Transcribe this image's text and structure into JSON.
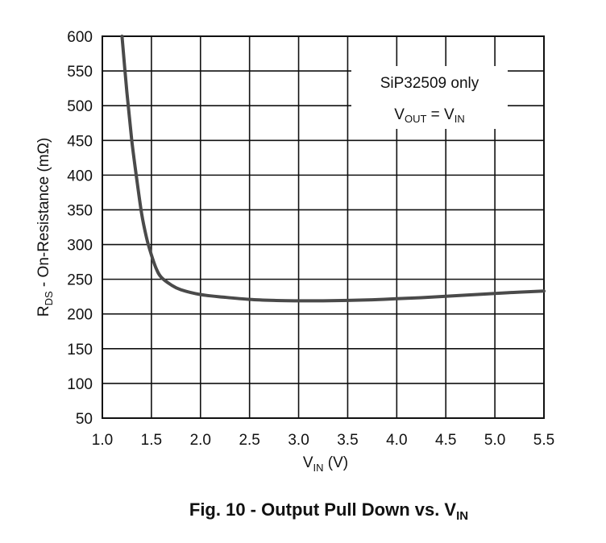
{
  "chart_data": {
    "type": "line",
    "caption": {
      "main": "Fig. 10 - Output Pull Down vs. V",
      "sub": "IN"
    },
    "xlabel": {
      "main": "V",
      "sub": "IN",
      "rest": " (V)"
    },
    "ylabel": {
      "pre": "R",
      "sub": "DS",
      "rest": " - On-Resistance (mΩ)"
    },
    "annotation": {
      "line1": "SiP32509 only",
      "line2": {
        "a": "V",
        "a_sub": "OUT",
        "eq": " = V",
        "b_sub": "IN"
      }
    },
    "xlim": [
      1.0,
      5.5
    ],
    "ylim": [
      50,
      600
    ],
    "xticks": [
      "1.0",
      "1.5",
      "2.0",
      "2.5",
      "3.0",
      "3.5",
      "4.0",
      "4.5",
      "5.0",
      "5.5"
    ],
    "yticks": [
      "600",
      "550",
      "500",
      "450",
      "400",
      "350",
      "300",
      "250",
      "200",
      "150",
      "100",
      "50"
    ],
    "grid": true,
    "series": [
      {
        "color": "#4a4a4a",
        "x": [
          1.2,
          1.25,
          1.3,
          1.35,
          1.4,
          1.45,
          1.5,
          1.55,
          1.6,
          1.7,
          1.8,
          2.0,
          2.25,
          2.5,
          2.75,
          3.0,
          3.25,
          3.5,
          3.75,
          4.0,
          4.25,
          4.5,
          4.75,
          5.0,
          5.25,
          5.5
        ],
        "y": [
          600,
          520,
          450,
          395,
          345,
          310,
          285,
          265,
          253,
          242,
          235,
          228,
          224,
          221,
          219.5,
          219,
          219,
          219.5,
          220.5,
          222,
          223.5,
          225.5,
          227.5,
          229.5,
          231.5,
          233
        ]
      }
    ]
  }
}
